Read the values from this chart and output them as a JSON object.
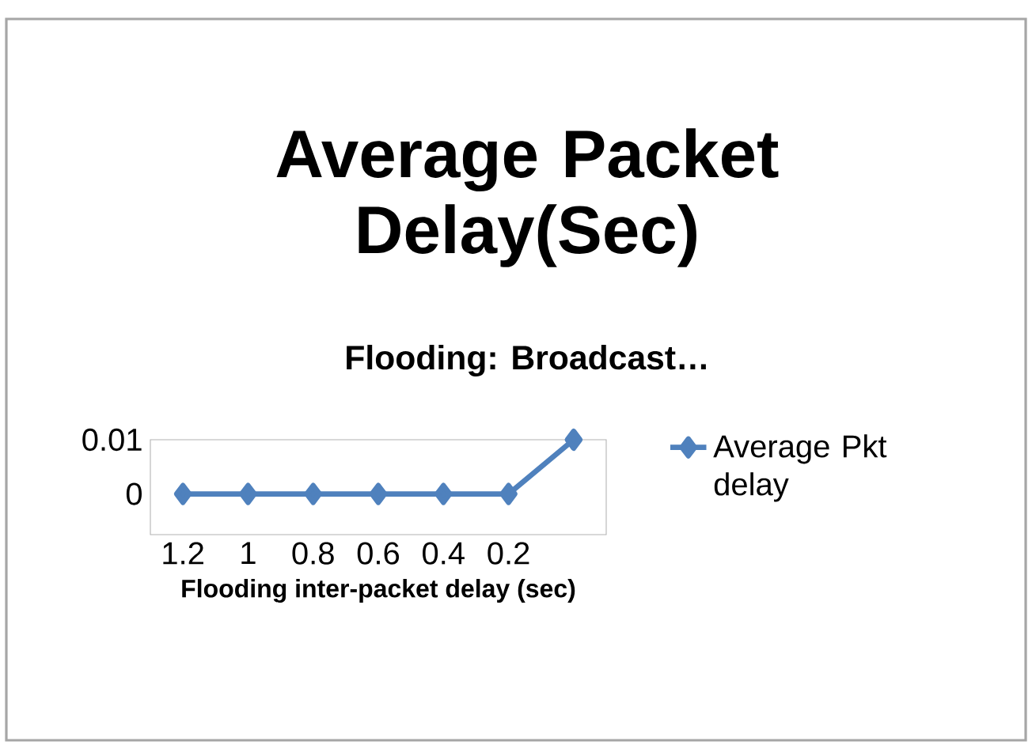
{
  "chart_data": {
    "type": "line",
    "title": "Average Packet Delay(Sec)",
    "subtitle": "Flooding: Broadcast…",
    "xlabel": "Flooding inter-packet delay (sec)",
    "categories": [
      "1.2",
      "1",
      "0.8",
      "0.6",
      "0.4",
      "0.2",
      null
    ],
    "series": [
      {
        "name": "Average Pkt delay",
        "color": "#4f81bd",
        "values": [
          0,
          0,
          0,
          0,
          0,
          0,
          0.01
        ]
      }
    ],
    "ylim": [
      -0.0075,
      0.01
    ],
    "yticks": [
      0,
      0.01
    ],
    "marker": "diamond",
    "legend": "right"
  }
}
